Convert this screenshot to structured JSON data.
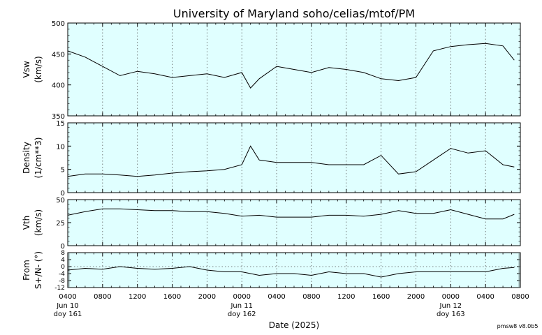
{
  "title": "University of Maryland  soho/celias/mtof/PM",
  "version_label": "pmsw8 v8.0b5",
  "chart_data": {
    "type": "line",
    "xlabel": "Date (2025)",
    "x_range_hours": [
      4,
      52
    ],
    "x_ticks": [
      {
        "h": 4,
        "label": "0400",
        "sub1": "Jun 10",
        "sub2": "doy 161"
      },
      {
        "h": 8,
        "label": "0800"
      },
      {
        "h": 12,
        "label": "1200"
      },
      {
        "h": 16,
        "label": "1600"
      },
      {
        "h": 20,
        "label": "2000"
      },
      {
        "h": 24,
        "label": "0000",
        "sub1": "Jun 11",
        "sub2": "doy 162"
      },
      {
        "h": 28,
        "label": "0400"
      },
      {
        "h": 32,
        "label": "0800"
      },
      {
        "h": 36,
        "label": "1200"
      },
      {
        "h": 40,
        "label": "1600"
      },
      {
        "h": 44,
        "label": "2000"
      },
      {
        "h": 48,
        "label": "0000",
        "sub1": "Jun 12",
        "sub2": "doy 163"
      },
      {
        "h": 52,
        "label": "0400"
      },
      {
        "h": 56,
        "label": "0800"
      }
    ],
    "x_min": 0,
    "x_max": 52,
    "panels": [
      {
        "name": "vsw",
        "ylabel1": "Vsw",
        "ylabel2": "(km/s)",
        "ylim": [
          350,
          500
        ],
        "yticks": [
          350,
          400,
          450,
          500
        ],
        "series": {
          "x": [
            0,
            2,
            4,
            6,
            8,
            10,
            12,
            14,
            16,
            18,
            20,
            21,
            22,
            24,
            26,
            28,
            30,
            32,
            34,
            36,
            38,
            40,
            42,
            44,
            46,
            48,
            50,
            51.3
          ],
          "y": [
            455,
            445,
            430,
            415,
            422,
            418,
            412,
            415,
            418,
            412,
            420,
            395,
            410,
            430,
            425,
            420,
            428,
            425,
            420,
            410,
            407,
            412,
            455,
            462,
            465,
            467,
            463,
            440
          ]
        }
      },
      {
        "name": "density",
        "ylabel1": "Density",
        "ylabel2": "(1/cm**3)",
        "ylim": [
          0,
          15
        ],
        "yticks": [
          0,
          5,
          10,
          15
        ],
        "series": {
          "x": [
            0,
            2,
            4,
            6,
            8,
            10,
            12,
            14,
            16,
            18,
            20,
            21,
            22,
            24,
            26,
            28,
            30,
            32,
            34,
            36,
            38,
            40,
            42,
            44,
            46,
            48,
            50,
            51.3
          ],
          "y": [
            3.5,
            4,
            4,
            3.8,
            3.5,
            3.8,
            4.2,
            4.5,
            4.7,
            5,
            6,
            10,
            7,
            6.5,
            6.5,
            6.5,
            6,
            6,
            6,
            8,
            4,
            4.5,
            7,
            9.5,
            8.5,
            9,
            6,
            5.5
          ]
        }
      },
      {
        "name": "vth",
        "ylabel1": "Vth",
        "ylabel2": "(km/s)",
        "ylim": [
          0,
          50
        ],
        "yticks": [
          0,
          25,
          50
        ],
        "series": {
          "x": [
            0,
            2,
            4,
            6,
            8,
            10,
            12,
            14,
            16,
            18,
            20,
            22,
            24,
            26,
            28,
            30,
            32,
            34,
            36,
            38,
            40,
            42,
            44,
            46,
            48,
            50,
            51.3
          ],
          "y": [
            33,
            37,
            40,
            40,
            39,
            38,
            38,
            37,
            37,
            35,
            32,
            33,
            31,
            31,
            31,
            33,
            33,
            32,
            34,
            38,
            35,
            35,
            39,
            34,
            29,
            29,
            34
          ]
        }
      },
      {
        "name": "from",
        "ylabel1": "From",
        "ylabel2": "S+/N- (°)",
        "ylim": [
          -12,
          8
        ],
        "yticks": [
          -12,
          -8,
          -4,
          0,
          4,
          8
        ],
        "series": {
          "x": [
            0,
            2,
            4,
            6,
            8,
            10,
            12,
            14,
            16,
            18,
            20,
            22,
            24,
            26,
            28,
            30,
            32,
            34,
            36,
            38,
            40,
            42,
            44,
            46,
            48,
            50,
            51.3
          ],
          "y": [
            -2,
            -1,
            -1.5,
            0,
            -1,
            -1.5,
            -1,
            0,
            -2,
            -3,
            -3,
            -5,
            -4,
            -4,
            -5,
            -3,
            -4,
            -4,
            -6,
            -4,
            -3,
            -3,
            -3,
            -3,
            -3,
            -1,
            -0.5
          ]
        }
      }
    ]
  }
}
